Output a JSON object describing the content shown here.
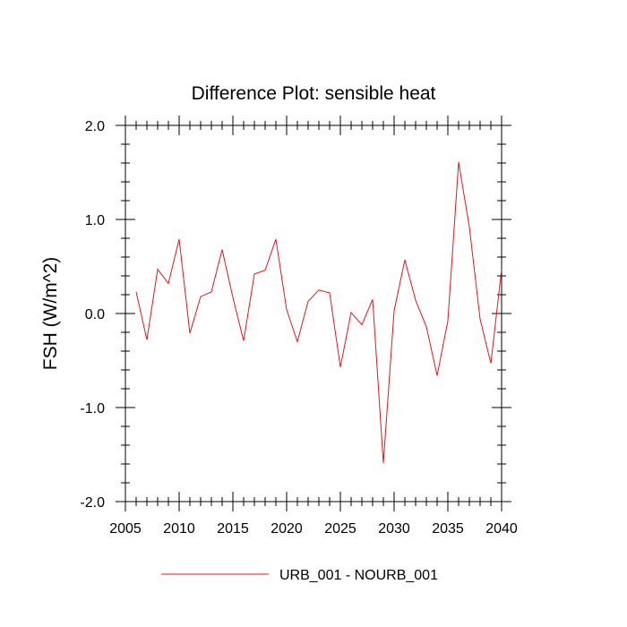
{
  "chart_data": {
    "type": "line",
    "title": "Difference Plot: sensible heat",
    "xlabel": "",
    "ylabel": "FSH  (W/m^2)",
    "xlim": [
      2005,
      2040
    ],
    "ylim": [
      -2.0,
      2.0
    ],
    "x_ticks": [
      2005,
      2010,
      2015,
      2020,
      2025,
      2030,
      2035,
      2040
    ],
    "x_tick_labels": [
      "2005",
      "2010",
      "2015",
      "2020",
      "2025",
      "2030",
      "2035",
      "2040"
    ],
    "y_ticks": [
      -2.0,
      -1.0,
      0.0,
      1.0,
      2.0
    ],
    "y_tick_labels": [
      "-2.0",
      "-1.0",
      "0.0",
      "1.0",
      "2.0"
    ],
    "grid": false,
    "legend_position": "bottom-center",
    "series": [
      {
        "name": "URB_001 - NOURB_001",
        "color": "#e8141a",
        "x": [
          2006,
          2007,
          2008,
          2009,
          2010,
          2011,
          2012,
          2013,
          2014,
          2015,
          2016,
          2017,
          2018,
          2019,
          2020,
          2021,
          2022,
          2023,
          2024,
          2025,
          2026,
          2027,
          2028,
          2029,
          2030,
          2031,
          2032,
          2033,
          2034,
          2035,
          2036,
          2037,
          2038,
          2039,
          2040
        ],
        "values": [
          0.23,
          -0.28,
          0.47,
          0.32,
          0.79,
          -0.21,
          0.18,
          0.23,
          0.68,
          0.17,
          -0.29,
          0.42,
          0.46,
          0.79,
          0.04,
          -0.3,
          0.13,
          0.25,
          0.22,
          -0.57,
          0.01,
          -0.12,
          0.15,
          -1.59,
          0.03,
          0.57,
          0.14,
          -0.14,
          -0.66,
          -0.08,
          1.61,
          0.92,
          -0.06,
          -0.53,
          0.47
        ]
      }
    ]
  }
}
